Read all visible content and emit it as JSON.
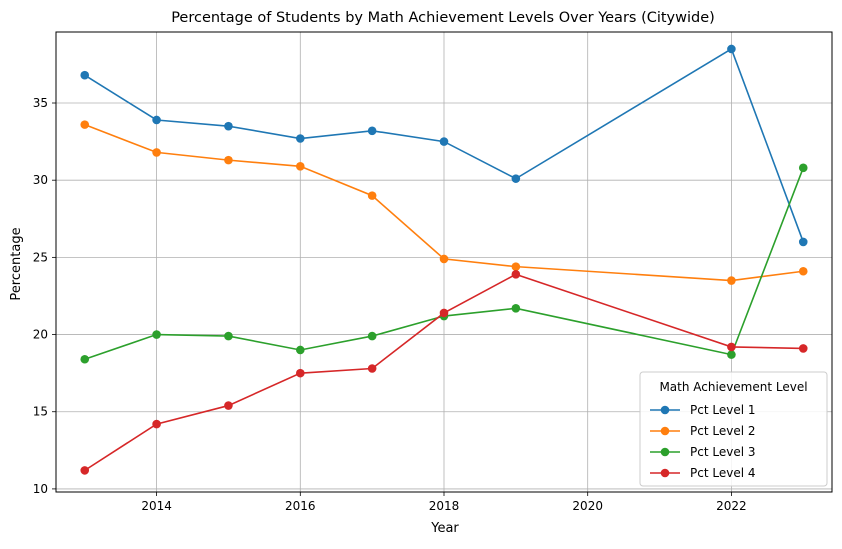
{
  "chart_data": {
    "type": "line",
    "title": "Percentage of Students by Math Achievement Levels Over Years (Citywide)",
    "xlabel": "Year",
    "ylabel": "Percentage",
    "xlim": [
      2012.6,
      2023.4
    ],
    "ylim": [
      9.8,
      39.6
    ],
    "xticks": [
      2014,
      2016,
      2018,
      2020,
      2022
    ],
    "yticks": [
      10,
      15,
      20,
      25,
      30,
      35
    ],
    "grid": true,
    "x": [
      2013,
      2014,
      2015,
      2016,
      2017,
      2018,
      2019,
      2022,
      2023
    ],
    "legend": {
      "title": "Math Achievement Level",
      "placement": "lower-right"
    },
    "series": [
      {
        "name": "Pct Level 1",
        "color": "#1f77b4",
        "values": [
          36.8,
          33.9,
          33.5,
          32.7,
          33.2,
          32.5,
          30.1,
          38.5,
          26.0
        ]
      },
      {
        "name": "Pct Level 2",
        "color": "#ff7f0e",
        "values": [
          33.6,
          31.8,
          31.3,
          30.9,
          29.0,
          24.9,
          24.4,
          23.5,
          24.1
        ]
      },
      {
        "name": "Pct Level 3",
        "color": "#2ca02c",
        "values": [
          18.4,
          20.0,
          19.9,
          19.0,
          19.9,
          21.2,
          21.7,
          18.7,
          30.8
        ]
      },
      {
        "name": "Pct Level 4",
        "color": "#d62728",
        "values": [
          11.2,
          14.2,
          15.4,
          17.5,
          17.8,
          21.4,
          23.9,
          19.2,
          19.1
        ]
      }
    ]
  }
}
